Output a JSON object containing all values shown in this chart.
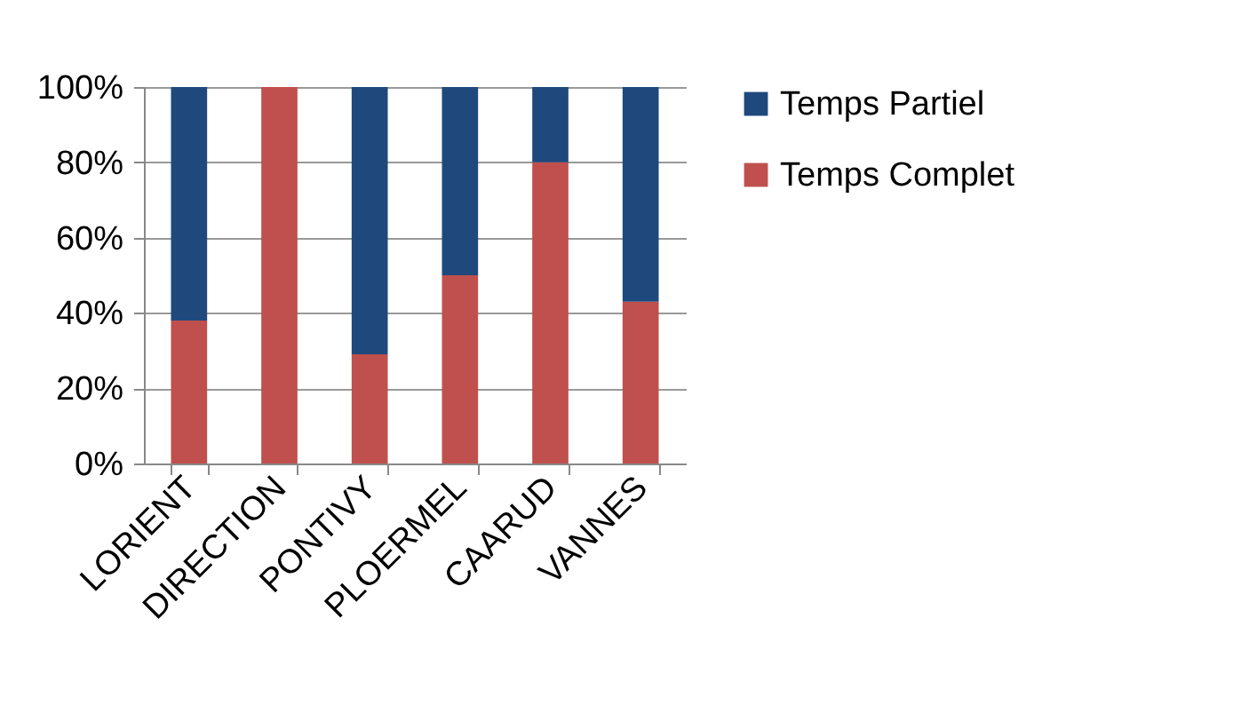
{
  "chart_data": {
    "type": "bar",
    "stacked": true,
    "categories": [
      "LORIENT",
      "DIRECTION",
      "PONTIVY",
      "PLOERMEL",
      "CAARUD",
      "VANNES"
    ],
    "series": [
      {
        "name": "Temps Complet",
        "color": "#c0504d",
        "values": [
          38,
          100,
          29,
          50,
          80,
          43
        ]
      },
      {
        "name": "Temps Partiel",
        "color": "#1f497d",
        "values": [
          62,
          0,
          71,
          50,
          20,
          57
        ]
      }
    ],
    "ylim": [
      0,
      100
    ],
    "yticks": [
      {
        "value": 0,
        "label": "0%"
      },
      {
        "value": 20,
        "label": "20%"
      },
      {
        "value": 40,
        "label": "40%"
      },
      {
        "value": 60,
        "label": "60%"
      },
      {
        "value": 80,
        "label": "80%"
      },
      {
        "value": 100,
        "label": "100%"
      }
    ],
    "grid": "y",
    "legend": "right"
  }
}
